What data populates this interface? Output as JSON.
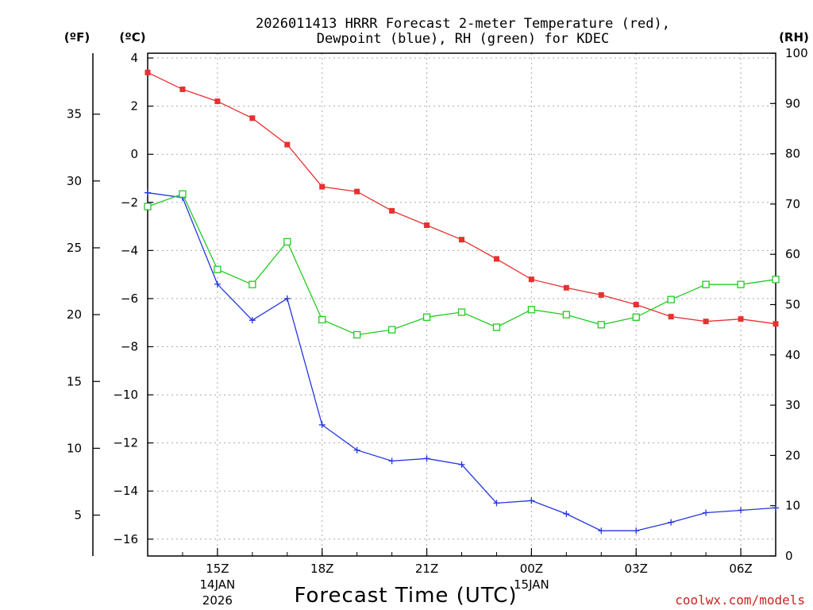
{
  "chart_data": {
    "type": "line",
    "title_line1": "2026011413 HRRR Forecast 2-meter Temperature (red),",
    "title_line2": "Dewpoint (blue), RH (green) for KDEC",
    "left_unit_f": "(ºF)",
    "left_unit_c": "(ºC)",
    "right_unit": "(RH)",
    "xlabel": "Forecast Time (UTC)",
    "credit": "coolwx.com/models",
    "colors": {
      "temperature": "#e83030",
      "dewpoint": "#2436e0",
      "rh": "#22cc22",
      "credit": "#cc2222"
    },
    "x_hours_since_13z": [
      0,
      1,
      2,
      3,
      4,
      5,
      6,
      7,
      8,
      9,
      10,
      11,
      12,
      13,
      14,
      15,
      16,
      17,
      18
    ],
    "c_axis": {
      "min": -16.7,
      "max": 4.2,
      "ticks": [
        4,
        2,
        0,
        -2,
        -4,
        -6,
        -8,
        -10,
        -12,
        -14,
        -16
      ]
    },
    "f_axis": {
      "ticks": [
        35,
        30,
        25,
        20,
        15,
        10,
        5
      ]
    },
    "rh_axis": {
      "min": 0,
      "max": 100,
      "ticks": [
        100,
        90,
        80,
        70,
        60,
        50,
        40,
        30,
        20,
        10,
        0
      ]
    },
    "x_ticks": [
      {
        "hour": 2,
        "label": "15Z",
        "sub1": "14JAN",
        "sub2": "2026"
      },
      {
        "hour": 5,
        "label": "18Z",
        "sub1": "",
        "sub2": ""
      },
      {
        "hour": 8,
        "label": "21Z",
        "sub1": "",
        "sub2": ""
      },
      {
        "hour": 11,
        "label": "00Z",
        "sub1": "15JAN",
        "sub2": ""
      },
      {
        "hour": 14,
        "label": "03Z",
        "sub1": "",
        "sub2": ""
      },
      {
        "hour": 17,
        "label": "06Z",
        "sub1": "",
        "sub2": ""
      }
    ],
    "series": [
      {
        "name": "Temperature",
        "unit": "C",
        "marker": "filled-square",
        "values": [
          3.4,
          2.7,
          2.2,
          1.5,
          0.4,
          -1.35,
          -1.55,
          -2.35,
          -2.95,
          -3.55,
          -4.35,
          -5.2,
          -5.55,
          -5.85,
          -6.25,
          -6.75,
          -6.95,
          -6.85,
          -7.05
        ]
      },
      {
        "name": "Dewpoint",
        "unit": "C",
        "marker": "plus",
        "values": [
          -1.6,
          -1.8,
          -5.4,
          -6.9,
          -6.0,
          -11.25,
          -12.3,
          -12.75,
          -12.65,
          -12.9,
          -14.5,
          -14.4,
          -14.95,
          -15.65,
          -15.65,
          -15.3,
          -14.9,
          -14.8,
          -14.7
        ]
      },
      {
        "name": "RH",
        "unit": "%",
        "marker": "open-square",
        "values": [
          69.5,
          72,
          57,
          54,
          62.5,
          47,
          44,
          45,
          47.5,
          48.5,
          45.5,
          49,
          48,
          46,
          47.5,
          51,
          54,
          54,
          55
        ]
      }
    ]
  }
}
